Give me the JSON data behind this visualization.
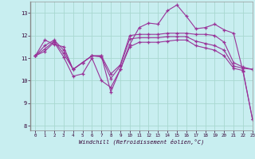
{
  "background_color": "#c8eef0",
  "grid_color": "#a8d8d0",
  "line_color": "#993399",
  "xlim": [
    -0.5,
    23
  ],
  "ylim": [
    7.8,
    13.5
  ],
  "yticks": [
    8,
    9,
    10,
    11,
    12,
    13
  ],
  "xticks": [
    0,
    1,
    2,
    3,
    4,
    5,
    6,
    7,
    8,
    9,
    10,
    11,
    12,
    13,
    14,
    15,
    16,
    17,
    18,
    19,
    20,
    21,
    22,
    23
  ],
  "xlabel": "Windchill (Refroidissement éolien,°C)",
  "series": [
    {
      "x": [
        0,
        1,
        2,
        3,
        4,
        5,
        6,
        7,
        8,
        9,
        10,
        11,
        12,
        13,
        14,
        15,
        16,
        17,
        18,
        19,
        20,
        21,
        22,
        23
      ],
      "y": [
        11.1,
        11.8,
        11.6,
        11.5,
        10.5,
        10.8,
        11.1,
        11.1,
        9.5,
        10.5,
        11.6,
        12.35,
        12.55,
        12.5,
        13.1,
        13.35,
        12.85,
        12.3,
        12.35,
        12.5,
        12.25,
        12.1,
        10.4,
        8.3
      ]
    },
    {
      "x": [
        0,
        1,
        2,
        3,
        4,
        5,
        6,
        7,
        8,
        9,
        10,
        11,
        12,
        13,
        14,
        15,
        16,
        17,
        18,
        19,
        20,
        21,
        22,
        23
      ],
      "y": [
        11.1,
        11.55,
        11.8,
        11.35,
        10.5,
        10.8,
        11.1,
        11.1,
        10.3,
        10.7,
        12.0,
        12.05,
        12.05,
        12.05,
        12.1,
        12.1,
        12.1,
        12.05,
        12.05,
        12.0,
        11.7,
        10.8,
        10.6,
        10.5
      ]
    },
    {
      "x": [
        0,
        1,
        2,
        3,
        4,
        5,
        6,
        7,
        8,
        9,
        10,
        11,
        12,
        13,
        14,
        15,
        16,
        17,
        18,
        19,
        20,
        21,
        22,
        23
      ],
      "y": [
        11.1,
        11.4,
        11.75,
        11.2,
        10.5,
        10.8,
        11.1,
        11.05,
        10.1,
        10.65,
        11.85,
        11.9,
        11.9,
        11.9,
        11.95,
        11.95,
        11.95,
        11.75,
        11.65,
        11.55,
        11.35,
        10.65,
        10.55,
        10.5
      ]
    },
    {
      "x": [
        0,
        1,
        2,
        3,
        4,
        5,
        6,
        7,
        8,
        9,
        10,
        11,
        12,
        13,
        14,
        15,
        16,
        17,
        18,
        19,
        20,
        21,
        22,
        23
      ],
      "y": [
        11.1,
        11.3,
        11.7,
        11.05,
        10.2,
        10.3,
        11.0,
        10.0,
        9.7,
        10.5,
        11.5,
        11.7,
        11.7,
        11.7,
        11.75,
        11.8,
        11.8,
        11.55,
        11.45,
        11.35,
        11.1,
        10.55,
        10.45,
        8.3
      ]
    }
  ]
}
